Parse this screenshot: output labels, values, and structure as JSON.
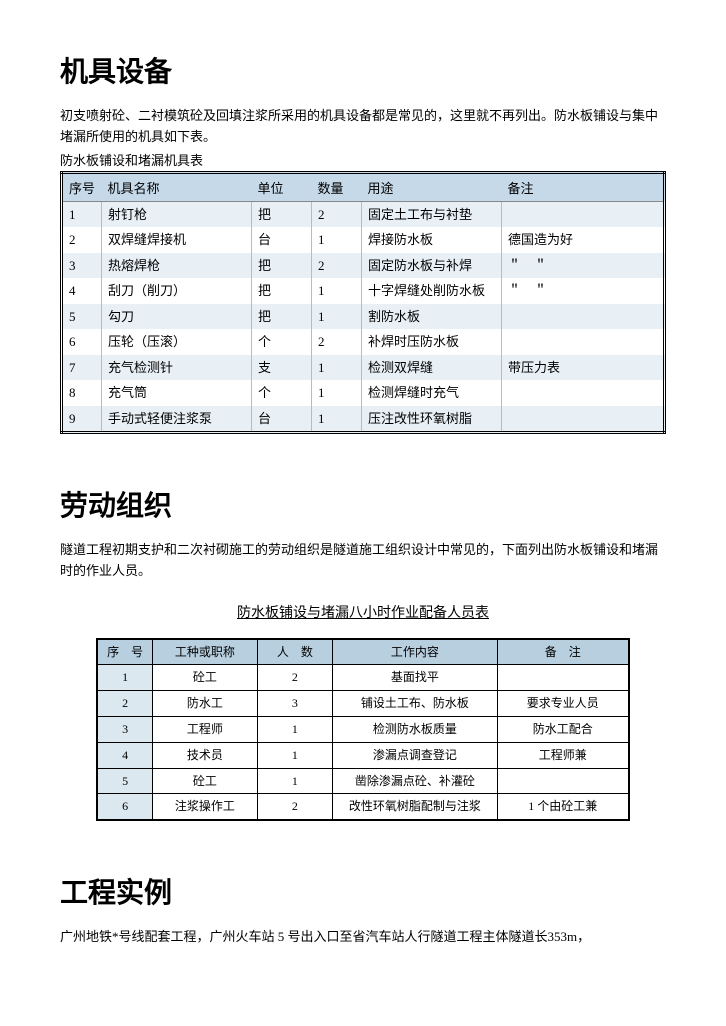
{
  "colors": {
    "text": "#000000",
    "background": "#ffffff",
    "t1_header_bg": "#c5d9e8",
    "t1_odd_bg": "#e8eff5",
    "t2_header_bg": "#b8cfe0",
    "t2_col1_bg": "#dce8f0"
  },
  "section1": {
    "heading": "机具设备",
    "para": "初支喷射砼、二衬模筑砼及回填注浆所采用的机具设备都是常见的，这里就不再列出。防水板铺设与集中堵漏所使用的机具如下表。",
    "caption": "防水板铺设和堵漏机具表",
    "table": {
      "headers": [
        "序号",
        "机具名称",
        "单位",
        "数量",
        "用途",
        "备注"
      ],
      "rows": [
        [
          "1",
          "射钉枪",
          "把",
          "2",
          "固定土工布与衬垫",
          ""
        ],
        [
          "2",
          "双焊缝焊接机",
          "台",
          "1",
          "焊接防水板",
          "德国造为好"
        ],
        [
          "3",
          "热熔焊枪",
          "把",
          "2",
          "固定防水板与补焊",
          "＂　＂"
        ],
        [
          "4",
          "刮刀（削刀）",
          "把",
          "1",
          "十字焊缝处削防水板",
          "＂　＂"
        ],
        [
          "5",
          "勾刀",
          "把",
          "1",
          "割防水板",
          ""
        ],
        [
          "6",
          "压轮（压滚）",
          "个",
          "2",
          "补焊时压防水板",
          ""
        ],
        [
          "7",
          "充气检测针",
          "支",
          "1",
          "检测双焊缝",
          "带压力表"
        ],
        [
          "8",
          "充气筒",
          "个",
          "1",
          "检测焊缝时充气",
          ""
        ],
        [
          "9",
          "手动式轻便注浆泵",
          "台",
          "1",
          "压注改性环氧树脂",
          ""
        ]
      ]
    }
  },
  "section2": {
    "heading": "劳动组织",
    "para": "隧道工程初期支护和二次衬砌施工的劳动组织是隧道施工组织设计中常见的，下面列出防水板铺设和堵漏时的作业人员。",
    "subtitle": "防水板铺设与堵漏八小时作业配备人员表",
    "table": {
      "headers": [
        "序　号",
        "工种或职称",
        "人　数",
        "工作内容",
        "备　注"
      ],
      "rows": [
        [
          "1",
          "砼工",
          "2",
          "基面找平",
          ""
        ],
        [
          "2",
          "防水工",
          "3",
          "铺设土工布、防水板",
          "要求专业人员"
        ],
        [
          "3",
          "工程师",
          "1",
          "检测防水板质量",
          "防水工配合"
        ],
        [
          "4",
          "技术员",
          "1",
          "渗漏点调查登记",
          "工程师兼"
        ],
        [
          "5",
          "砼工",
          "1",
          "凿除渗漏点砼、补灌砼",
          ""
        ],
        [
          "6",
          "注浆操作工",
          "2",
          "改性环氧树脂配制与注浆",
          "1 个由砼工兼"
        ]
      ]
    }
  },
  "section3": {
    "heading": "工程实例",
    "para": "广州地铁*号线配套工程，广州火车站 5 号出入口至省汽车站人行隧道工程主体隧道长353m，"
  }
}
